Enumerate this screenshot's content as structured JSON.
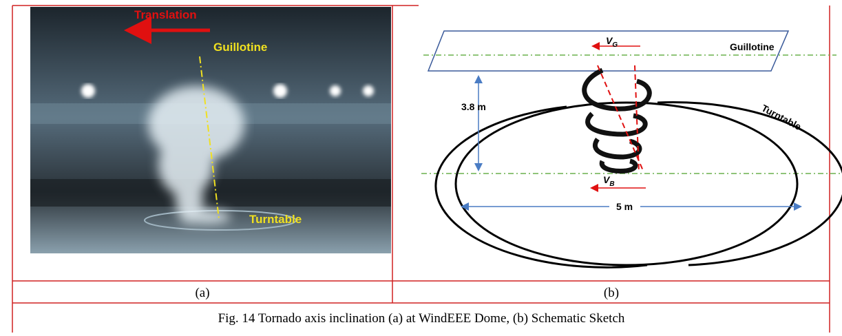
{
  "panel_a": {
    "labels": {
      "translation": "Translation",
      "guillotine": "Guillotine",
      "turntable": "Turntable"
    },
    "caption": "(a)"
  },
  "panel_b": {
    "labels": {
      "vg": {
        "main": "V",
        "sub": "G"
      },
      "guillotine": "Guillotine",
      "height": "3.8 m",
      "turntable": "Turntable",
      "vb": {
        "main": "V",
        "sub": "B"
      },
      "diameter": "5 m"
    },
    "caption": "(b)"
  },
  "figure_caption": "Fig. 14 Tornado axis inclination (a) at WindEEE Dome, (b) Schematic Sketch"
}
